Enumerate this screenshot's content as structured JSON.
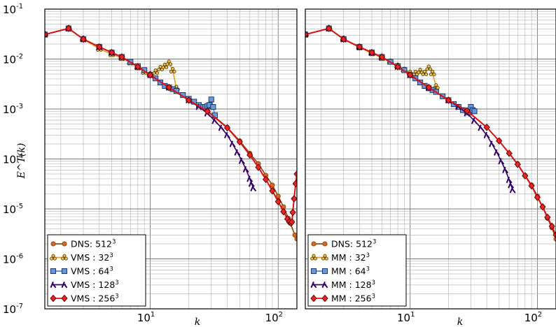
{
  "chart_data": [
    {
      "type": "line",
      "panel": "left",
      "xscale": "log",
      "yscale": "log",
      "xlim": [
        1.5,
        140
      ],
      "ylim": [
        1e-07,
        0.1
      ],
      "grid": true,
      "legend_position": "bottom-left",
      "xlabel": "k",
      "ylabel": "E^T(k)",
      "xticks": [
        {
          "value": 10,
          "base": "10",
          "exp": "1"
        },
        {
          "value": 100,
          "base": "10",
          "exp": "2"
        }
      ],
      "yticks": [
        {
          "value": 1e-07,
          "base": "10",
          "exp": "-7"
        },
        {
          "value": 1e-06,
          "base": "10",
          "exp": "-6"
        },
        {
          "value": 1e-05,
          "base": "10",
          "exp": "-5"
        },
        {
          "value": 0.0001,
          "base": "10",
          "exp": "-4"
        },
        {
          "value": 0.001,
          "base": "10",
          "exp": "-3"
        },
        {
          "value": 0.01,
          "base": "10",
          "exp": "-2"
        },
        {
          "value": 0.1,
          "base": "10",
          "exp": "-1"
        }
      ],
      "series": [
        {
          "name": "DNS: 512",
          "sup": "3",
          "color": "#8B4513",
          "face": "#d2691e",
          "marker": "circle",
          "x": [
            1.5,
            2.3,
            3,
            4,
            5,
            6,
            8,
            10,
            14,
            20,
            28,
            40,
            50,
            60,
            70,
            80,
            90,
            100,
            110,
            120,
            135,
            140
          ],
          "y": [
            0.031,
            0.041,
            0.025,
            0.0175,
            0.0135,
            0.011,
            0.007,
            0.0048,
            0.0027,
            0.0015,
            0.00092,
            0.00043,
            0.00023,
            0.00013,
            8e-05,
            4.7e-05,
            3e-05,
            1.8e-05,
            1.1e-05,
            6.5e-06,
            3e-06,
            2.5e-06
          ]
        },
        {
          "name": "VMS : 32",
          "sup": "3",
          "color": "#DAA520",
          "face": "#F0C040",
          "marker": "trefoil",
          "x": [
            1.5,
            2.3,
            3,
            4,
            5,
            6,
            7,
            8,
            9,
            10,
            11,
            12,
            13,
            14,
            15,
            16
          ],
          "y": [
            0.031,
            0.041,
            0.025,
            0.016,
            0.0125,
            0.0105,
            0.0085,
            0.0068,
            0.0055,
            0.0049,
            0.0055,
            0.0065,
            0.0072,
            0.0083,
            0.0059,
            0.0026
          ]
        },
        {
          "name": "VMS : 64",
          "sup": "3",
          "color": "#5588DD",
          "face": "#6699DD",
          "marker": "square",
          "x": [
            1.5,
            2.3,
            3,
            4,
            5,
            6,
            7,
            8,
            9,
            10,
            11,
            12,
            13,
            14,
            15,
            16,
            18,
            20,
            22,
            24,
            26,
            27,
            28,
            29,
            30,
            31,
            32
          ],
          "y": [
            0.031,
            0.041,
            0.025,
            0.0175,
            0.0135,
            0.011,
            0.0088,
            0.0072,
            0.006,
            0.0048,
            0.0041,
            0.0034,
            0.0029,
            0.0027,
            0.0025,
            0.0023,
            0.0019,
            0.0016,
            0.0014,
            0.0012,
            0.0011,
            0.0011,
            0.00115,
            0.0012,
            0.00155,
            0.0011,
            0.00075
          ]
        },
        {
          "name": "VMS : 128",
          "sup": "3",
          "color": "#330066",
          "face": "#330066",
          "marker": "lambda",
          "x": [
            1.5,
            2.3,
            3,
            4,
            5,
            6,
            8,
            10,
            14,
            20,
            24,
            28,
            32,
            36,
            40,
            44,
            48,
            52,
            56,
            60,
            62,
            64
          ],
          "y": [
            0.031,
            0.041,
            0.025,
            0.0175,
            0.0135,
            0.011,
            0.007,
            0.0048,
            0.0027,
            0.0015,
            0.0011,
            0.00082,
            0.00058,
            0.00042,
            0.0003,
            0.0002,
            0.000135,
            9.2e-05,
            6.2e-05,
            4e-05,
            3.2e-05,
            2.6e-05
          ]
        },
        {
          "name": "VMS : 256",
          "sup": "3",
          "color": "#DD1111",
          "face": "#EE2222",
          "marker": "diamond",
          "x": [
            1.5,
            2.3,
            3,
            4,
            5,
            6,
            8,
            10,
            14,
            20,
            28,
            40,
            50,
            60,
            70,
            80,
            90,
            100,
            110,
            118,
            122,
            126,
            128,
            130,
            133,
            137,
            140
          ],
          "y": [
            0.031,
            0.041,
            0.025,
            0.0175,
            0.0135,
            0.011,
            0.007,
            0.0048,
            0.0027,
            0.0015,
            0.0009,
            0.00042,
            0.00022,
            0.00012,
            6.8e-05,
            3.9e-05,
            2.3e-05,
            1.4e-05,
            8.8e-06,
            6.3e-06,
            5.5e-06,
            5.2e-06,
            5.5e-06,
            8.5e-06,
            1.6e-05,
            3.2e-05,
            5e-05
          ]
        }
      ]
    },
    {
      "type": "line",
      "panel": "right",
      "xscale": "log",
      "yscale": "log",
      "xlim": [
        1.5,
        140
      ],
      "ylim": [
        1e-07,
        0.1
      ],
      "grid": true,
      "legend_position": "bottom-left",
      "xlabel": "k",
      "ylabel": "",
      "xticks": [
        {
          "value": 10,
          "base": "10",
          "exp": "1"
        },
        {
          "value": 100,
          "base": "10",
          "exp": "2"
        }
      ],
      "yticks": [],
      "series": [
        {
          "name": "DNS: 512",
          "sup": "3",
          "color": "#8B4513",
          "face": "#d2691e",
          "marker": "circle",
          "x": [
            1.5,
            2.3,
            3,
            4,
            5,
            6,
            8,
            10,
            14,
            20,
            28,
            40,
            50,
            60,
            70,
            80,
            90,
            100,
            110,
            120,
            130,
            140
          ],
          "y": [
            0.031,
            0.041,
            0.025,
            0.0175,
            0.0135,
            0.011,
            0.007,
            0.0048,
            0.0027,
            0.0015,
            0.00092,
            0.00043,
            0.00023,
            0.00013,
            8e-05,
            4.7e-05,
            3e-05,
            1.8e-05,
            1.1e-05,
            6.5e-06,
            4.2e-06,
            2.5e-06
          ]
        },
        {
          "name": "MM : 32",
          "sup": "3",
          "color": "#DAA520",
          "face": "#F0C040",
          "marker": "trefoil",
          "x": [
            1.5,
            2.3,
            3,
            4,
            5,
            6,
            7,
            8,
            9,
            10,
            11,
            12,
            13,
            14,
            15,
            16
          ],
          "y": [
            0.031,
            0.041,
            0.025,
            0.017,
            0.013,
            0.0105,
            0.0088,
            0.0072,
            0.006,
            0.0052,
            0.0052,
            0.0057,
            0.0052,
            0.0066,
            0.0052,
            0.0028
          ]
        },
        {
          "name": "MM : 64",
          "sup": "3",
          "color": "#5588DD",
          "face": "#6699DD",
          "marker": "square",
          "x": [
            1.5,
            2.3,
            3,
            4,
            5,
            6,
            7,
            8,
            9,
            10,
            11,
            12,
            13,
            14,
            15,
            16,
            18,
            20,
            22,
            24,
            26,
            28,
            29,
            30,
            31,
            32
          ],
          "y": [
            0.031,
            0.041,
            0.025,
            0.0175,
            0.0135,
            0.011,
            0.0088,
            0.0072,
            0.006,
            0.0048,
            0.0041,
            0.0034,
            0.0029,
            0.0026,
            0.0024,
            0.0022,
            0.0018,
            0.0015,
            0.00125,
            0.0011,
            0.00095,
            0.0009,
            0.00085,
            0.0011,
            0.00095,
            0.0009
          ]
        },
        {
          "name": "MM : 128",
          "sup": "3",
          "color": "#330066",
          "face": "#330066",
          "marker": "lambda",
          "x": [
            1.5,
            2.3,
            3,
            4,
            5,
            6,
            8,
            10,
            14,
            20,
            24,
            28,
            32,
            36,
            40,
            44,
            48,
            52,
            56,
            60,
            62,
            64
          ],
          "y": [
            0.031,
            0.041,
            0.025,
            0.0175,
            0.0135,
            0.011,
            0.007,
            0.0048,
            0.0027,
            0.0015,
            0.0011,
            0.00082,
            0.00058,
            0.00042,
            0.0003,
            0.0002,
            0.000135,
            9e-05,
            6e-05,
            3.8e-05,
            3e-05,
            2.4e-05
          ]
        },
        {
          "name": "MM : 256",
          "sup": "3",
          "color": "#DD1111",
          "face": "#EE2222",
          "marker": "diamond",
          "x": [
            1.5,
            2.3,
            3,
            4,
            5,
            6,
            8,
            10,
            14,
            20,
            28,
            40,
            50,
            60,
            70,
            80,
            90,
            100,
            110,
            120,
            130,
            140
          ],
          "y": [
            0.031,
            0.041,
            0.025,
            0.0175,
            0.0135,
            0.011,
            0.007,
            0.0048,
            0.0027,
            0.0015,
            0.00092,
            0.00043,
            0.00023,
            0.00013,
            7.8e-05,
            4.6e-05,
            2.9e-05,
            1.7e-05,
            1.1e-05,
            6.8e-06,
            4.5e-06,
            3e-06
          ]
        }
      ]
    }
  ]
}
